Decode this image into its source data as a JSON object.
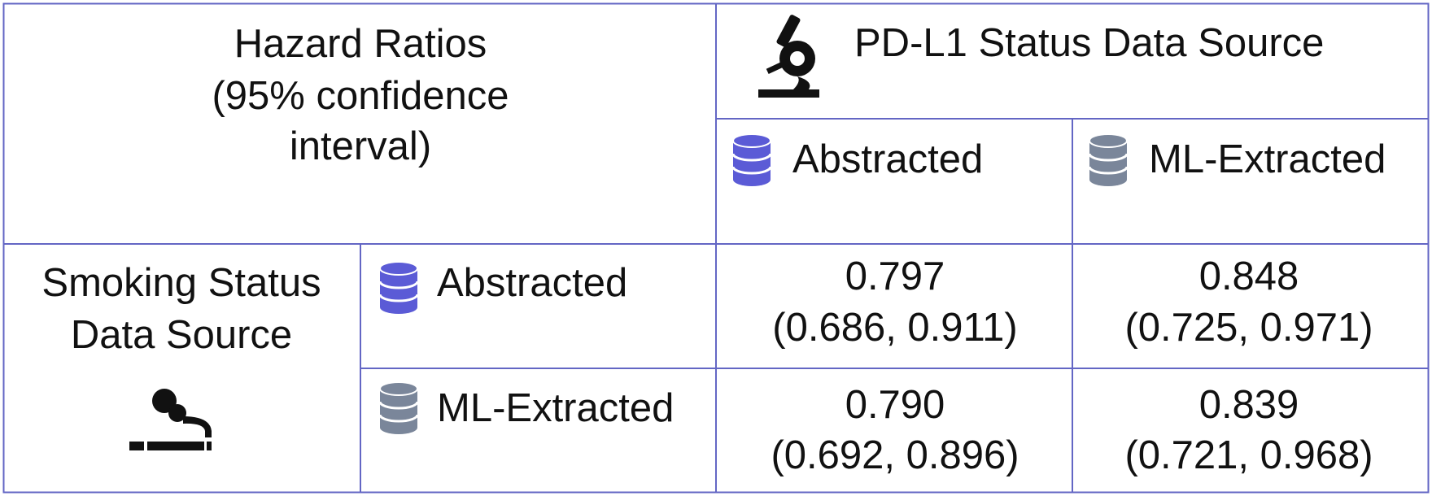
{
  "header": {
    "title_lines": [
      "Hazard Ratios",
      "(95% confidence",
      "interval)"
    ],
    "column_group": "PD-L1 Status Data Source",
    "columns": [
      "Abstracted",
      "ML-Extracted"
    ]
  },
  "row_group": {
    "title_lines": [
      "Smoking Status",
      "Data Source"
    ],
    "rows": [
      "Abstracted",
      "ML-Extracted"
    ]
  },
  "table": {
    "rows": [
      [
        {
          "value": "0.797",
          "ci": "(0.686, 0.911)"
        },
        {
          "value": "0.848",
          "ci": "(0.725, 0.971)"
        }
      ],
      [
        {
          "value": "0.790",
          "ci": "(0.692, 0.896)"
        },
        {
          "value": "0.839",
          "ci": "(0.721, 0.968)"
        }
      ]
    ]
  }
}
